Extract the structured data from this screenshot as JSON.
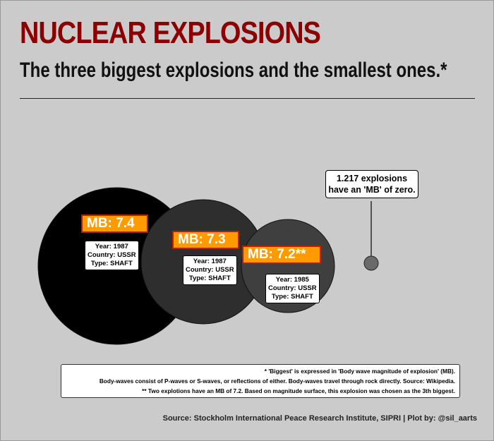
{
  "title": "NUCLEAR EXPLOSIONS",
  "subtitle": "The three biggest explosions and the smallest ones.*",
  "chart_data": {
    "type": "bubble",
    "points": [
      {
        "mb": 7.4,
        "label": "MB: 7.4",
        "year": "Year: 1987",
        "country": "Country: USSR",
        "type": "Type: SHAFT",
        "color": "#000000"
      },
      {
        "mb": 7.3,
        "label": "MB: 7.3",
        "year": "Year: 1987",
        "country": "Country: USSR",
        "type": "Type: SHAFT",
        "color": "#2e2e2e"
      },
      {
        "mb": 7.2,
        "label": "MB: 7.2**",
        "year": "Year: 1985",
        "country": "Country: USSR",
        "type": "Type: SHAFT",
        "color": "#3f3f3f"
      },
      {
        "mb": 0,
        "count": 1217,
        "color": "#6a6a6a"
      }
    ],
    "annotation": {
      "line1": "1.217 explosions",
      "line2": "have an 'MB' of zero."
    }
  },
  "notes": {
    "line1": "* 'Biggest' is expressed in 'Body wave magnitude of explosion' (MB).",
    "line2": "Body-waves consist of P-waves or S-waves, or reflections of either. Body-waves travel through rock directly. Source: Wikipedia.",
    "line3": "** Two explotions have an MB of 7.2. Based on magnitude surface, this explosion was chosen as the 3th biggest."
  },
  "source": "Source: Stockholm International Peace Research Institute, SIPRI | Plot by: @sil_aarts"
}
